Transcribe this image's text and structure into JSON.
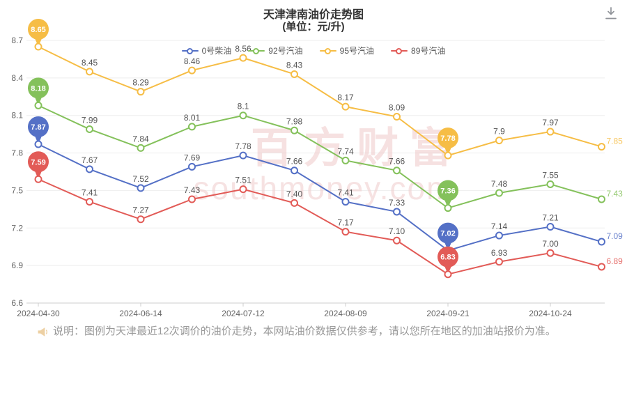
{
  "header": {
    "title": "天津津南油价走势图",
    "subtitle": "(单位：元/升)"
  },
  "toolbar": {
    "download_icon": "download-icon"
  },
  "watermark": {
    "brand": "百方财富",
    "site": "southmoney.com"
  },
  "note": {
    "icon": "megaphone-icon",
    "text": "说明：图例为天津最近12次调价的油价走势，本网站油价数据仅供参考，请以您所在地区的加油站报价为准。"
  },
  "chart_data": {
    "type": "line",
    "title": "天津津南油价走势图",
    "subtitle": "(单位：元/升)",
    "x_labels": [
      "2024-04-30",
      "2024-06-14",
      "2024-07-12",
      "2024-08-09",
      "2024-09-21",
      "2024-10-24"
    ],
    "x_label_indices": [
      0,
      2,
      4,
      6,
      8,
      10
    ],
    "num_points": 12,
    "ylim": [
      6.6,
      8.7
    ],
    "y_ticks": [
      6.6,
      6.9,
      7.2,
      7.5,
      7.8,
      8.1,
      8.4,
      8.7
    ],
    "grid": true,
    "legend_position": "top",
    "series": [
      {
        "name": "0号柴油",
        "color": "#5470c6",
        "values": [
          7.87,
          7.67,
          7.52,
          7.69,
          7.78,
          7.66,
          7.41,
          7.33,
          7.02,
          7.14,
          7.21,
          7.09
        ],
        "labels": [
          "7.87",
          "7.67",
          "7.52",
          "7.69",
          "7.78",
          "7.66",
          "7.41",
          "7.33",
          "7.02",
          "7.14",
          "7.21",
          "7.09"
        ],
        "pin_indices": [
          0,
          8
        ]
      },
      {
        "name": "92号汽油",
        "color": "#84c15b",
        "values": [
          8.18,
          7.99,
          7.84,
          8.01,
          8.1,
          7.98,
          7.74,
          7.66,
          7.36,
          7.48,
          7.55,
          7.43
        ],
        "labels": [
          "8.18",
          "7.99",
          "7.84",
          "8.01",
          "8.1",
          "7.98",
          "7.74",
          "7.66",
          "7.36",
          "7.48",
          "7.55",
          "7.43"
        ],
        "pin_indices": [
          0,
          8
        ]
      },
      {
        "name": "95号汽油",
        "color": "#f6bd45",
        "values": [
          8.65,
          8.45,
          8.29,
          8.46,
          8.56,
          8.43,
          8.17,
          8.09,
          7.78,
          7.9,
          7.97,
          7.85
        ],
        "labels": [
          "8.65",
          "8.45",
          "8.29",
          "8.46",
          "8.56",
          "8.43",
          "8.17",
          "8.09",
          "7.78",
          "7.9",
          "7.97",
          "7.85"
        ],
        "pin_indices": [
          0,
          8
        ]
      },
      {
        "name": "89号汽油",
        "color": "#e25b57",
        "values": [
          7.59,
          7.41,
          7.27,
          7.43,
          7.51,
          7.4,
          7.17,
          7.1,
          6.83,
          6.93,
          7.0,
          6.89
        ],
        "labels": [
          "7.59",
          "7.41",
          "7.27",
          "7.43",
          "7.51",
          "7.40",
          "7.17",
          "7.10",
          "6.83",
          "6.93",
          "7.00",
          "6.89"
        ],
        "pin_indices": [
          0,
          8
        ]
      }
    ]
  }
}
